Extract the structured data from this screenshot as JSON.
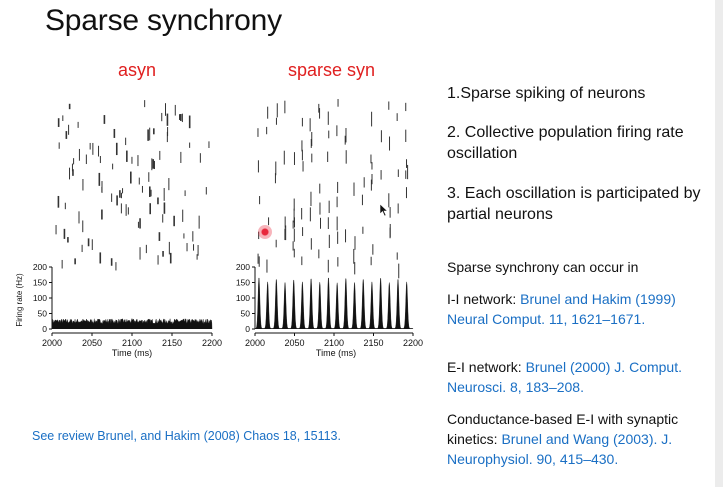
{
  "slide": {
    "title": "Sparse synchrony",
    "review_note": "See review Brunel, and Hakim (2008) Chaos 18, 15113."
  },
  "figure": {
    "left_label": "asyn",
    "right_label": "sparse syn",
    "label_color": "#e02020",
    "y_axis_label": "Firing rate (Hz)",
    "x_axis_label": "Time (ms)"
  },
  "points": [
    {
      "number": "1.",
      "text": "Sparse spiking of neurons"
    },
    {
      "number": "2.",
      "text": "Collective population firing rate oscillation"
    },
    {
      "number": "3.",
      "text": "Each oscillation is participated by partial neurons"
    }
  ],
  "occurrence": {
    "heading": "Sparse synchrony can occur in",
    "items": [
      {
        "label": "I-I network: ",
        "ref": "Brunel and Hakim (1999) Neural Comput. 11, 1621–1671."
      },
      {
        "label": "E-I network: ",
        "ref": "Brunel (2000) J. Comput. Neurosci. 8, 183–208."
      },
      {
        "label": "Conductance-based E-I with synaptic kinetics: ",
        "ref": "Brunel and Wang (2003). J. Neurophysiol. 90, 415–430."
      }
    ]
  },
  "colors": {
    "reference": "#1a6fc4",
    "text": "#111111"
  },
  "chart_data": [
    {
      "type": "area",
      "title": "asyn",
      "xlabel": "Time (ms)",
      "ylabel": "Firing rate (Hz)",
      "xlim": [
        2000,
        2200
      ],
      "ylim": [
        0,
        200
      ],
      "x_ticks": [
        2000,
        2050,
        2100,
        2150,
        2200
      ],
      "y_ticks": [
        0,
        50,
        100,
        150,
        200
      ],
      "description_values": {
        "baseline_rate": 25,
        "fluctuation": 8
      }
    },
    {
      "type": "area",
      "title": "sparse syn",
      "xlabel": "Time (ms)",
      "ylabel": "Firing rate (Hz)",
      "xlim": [
        2000,
        2200
      ],
      "ylim": [
        0,
        200
      ],
      "x_ticks": [
        2000,
        2050,
        2100,
        2150,
        2200
      ],
      "y_ticks": [
        0,
        50,
        100,
        150,
        200
      ],
      "peak_times": [
        2005,
        2016,
        2027,
        2038,
        2049,
        2060,
        2071,
        2082,
        2093,
        2104,
        2115,
        2126,
        2137,
        2148,
        2159,
        2170,
        2181,
        2192
      ],
      "peak_rates": [
        165,
        150,
        160,
        148,
        158,
        150,
        162,
        149,
        165,
        147,
        163,
        148,
        160,
        150,
        164,
        148,
        160,
        150
      ]
    }
  ]
}
